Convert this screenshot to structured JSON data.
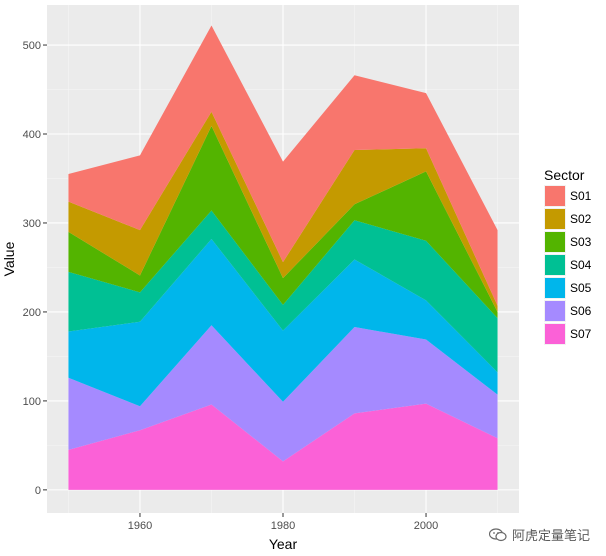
{
  "chart_data": {
    "type": "area",
    "stacked": true,
    "x": [
      1950,
      1960,
      1970,
      1980,
      1990,
      2000,
      2010
    ],
    "xticks": [
      1960,
      1980,
      2000
    ],
    "yticks": [
      0,
      100,
      200,
      300,
      400,
      500
    ],
    "xlim": [
      1947,
      2013
    ],
    "ylim": [
      -26,
      545
    ],
    "xlabel": "Year",
    "ylabel": "Value",
    "legend_title": "Sector",
    "legend_position": "right",
    "grid": true,
    "series": [
      {
        "name": "S01",
        "color": "#F8766D",
        "values": [
          31,
          84,
          97,
          113,
          84,
          62,
          85
        ]
      },
      {
        "name": "S02",
        "color": "#C49A00",
        "values": [
          34,
          51,
          16,
          18,
          61,
          26,
          7
        ]
      },
      {
        "name": "S03",
        "color": "#53B400",
        "values": [
          45,
          19,
          95,
          30,
          18,
          78,
          7
        ]
      },
      {
        "name": "S04",
        "color": "#00C094",
        "values": [
          67,
          33,
          32,
          29,
          44,
          67,
          61
        ]
      },
      {
        "name": "S05",
        "color": "#00B6EB",
        "values": [
          52,
          95,
          97,
          80,
          76,
          44,
          25
        ]
      },
      {
        "name": "S06",
        "color": "#A58AFF",
        "values": [
          81,
          27,
          89,
          67,
          97,
          72,
          49
        ]
      },
      {
        "name": "S07",
        "color": "#FB61D7",
        "values": [
          45,
          67,
          96,
          32,
          86,
          97,
          58
        ]
      }
    ]
  },
  "watermark": {
    "text": "阿虎定量笔记",
    "icon": "wechat-icon"
  }
}
